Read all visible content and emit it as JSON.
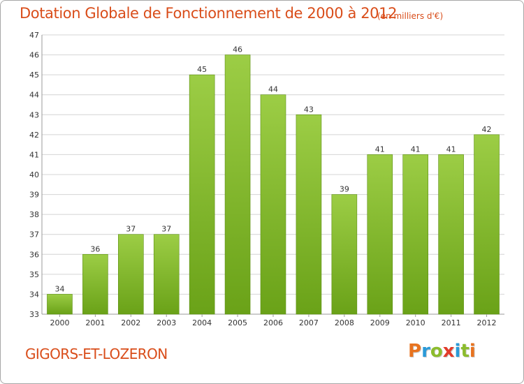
{
  "header": {
    "title": "Dotation Globale de Fonctionnement de 2000 à 2012",
    "unit": "(en milliers d'€)"
  },
  "footer": {
    "commune": "GIGORS-ET-LOZERON",
    "logo": {
      "letters": [
        "P",
        "r",
        "o",
        "x",
        "i",
        "t",
        "i"
      ],
      "colors": [
        "#e8731f",
        "#2a9ad8",
        "#8cbc2d",
        "#e23b2a",
        "#2a9ad8",
        "#8cbc2d",
        "#e8731f"
      ]
    }
  },
  "colors": {
    "bar_light": "#9ccd45",
    "bar_dark": "#6aa218",
    "grid": "#d4d4d4",
    "axis": "#9a9a9a",
    "accent": "#d94d1a"
  },
  "chart_data": {
    "type": "bar",
    "title": "Dotation Globale de Fonctionnement de 2000 à 2012",
    "subtitle": "(en milliers d'€)",
    "categories": [
      "2000",
      "2001",
      "2002",
      "2003",
      "2004",
      "2005",
      "2006",
      "2007",
      "2008",
      "2009",
      "2010",
      "2011",
      "2012"
    ],
    "values": [
      34,
      36,
      37,
      37,
      45,
      46,
      44,
      43,
      39,
      41,
      41,
      41,
      42
    ],
    "ylim": [
      33,
      47
    ],
    "yticks": [
      33,
      34,
      35,
      36,
      37,
      38,
      39,
      40,
      41,
      42,
      43,
      44,
      45,
      46,
      47
    ],
    "grid": true,
    "data_labels": true
  }
}
